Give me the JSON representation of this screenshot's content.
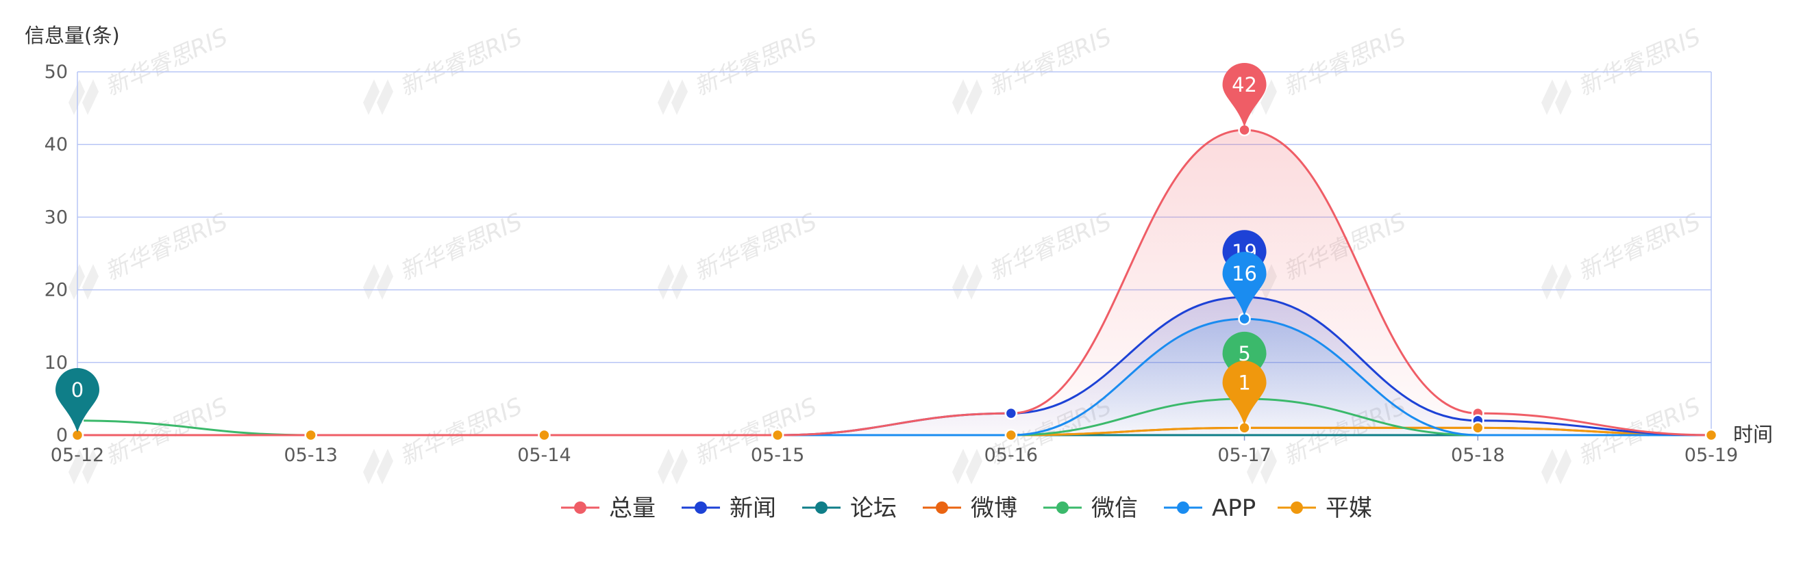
{
  "chart_data": {
    "type": "line",
    "ylabel": "信息量(条)",
    "xlabel": "时间",
    "categories": [
      "05-12",
      "05-13",
      "05-14",
      "05-15",
      "05-16",
      "05-17",
      "05-18",
      "05-19"
    ],
    "ylim": [
      0,
      50
    ],
    "yticks": [
      0,
      10,
      20,
      30,
      40,
      50
    ],
    "grid": true,
    "legend_position": "bottom",
    "series": [
      {
        "name": "总量",
        "color": "#ef5d66",
        "values": [
          0,
          0,
          0,
          0,
          3,
          42,
          3,
          0
        ],
        "area": true,
        "max_pin": "42"
      },
      {
        "name": "新闻",
        "color": "#1d42d6",
        "values": [
          0,
          0,
          0,
          0,
          3,
          19,
          2,
          0
        ],
        "area": true,
        "max_pin": "19"
      },
      {
        "name": "论坛",
        "color": "#0f7e88",
        "values": [
          0,
          0,
          0,
          0,
          0,
          0,
          0,
          0
        ],
        "area": false,
        "max_pin": "0"
      },
      {
        "name": "微博",
        "color": "#ea6412",
        "values": [
          0,
          0,
          0,
          0,
          0,
          1,
          1,
          0
        ],
        "area": false,
        "max_pin": ""
      },
      {
        "name": "微信",
        "color": "#3bb96b",
        "values": [
          2,
          0,
          0,
          0,
          0,
          5,
          0,
          0
        ],
        "area": false,
        "max_pin": "5"
      },
      {
        "name": "APP",
        "color": "#1a8cf0",
        "values": [
          0,
          0,
          0,
          0,
          0,
          16,
          0,
          0
        ],
        "area": true,
        "max_pin": "16"
      },
      {
        "name": "平媒",
        "color": "#f0980d",
        "values": [
          0,
          0,
          0,
          0,
          0,
          1,
          1,
          0
        ],
        "area": false,
        "max_pin": "1"
      }
    ],
    "watermark": "新华睿思RIS"
  }
}
